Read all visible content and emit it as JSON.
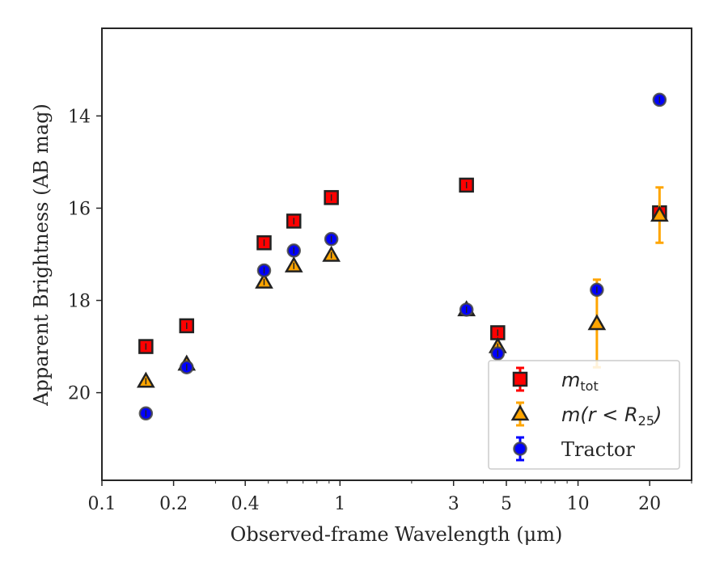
{
  "chart_data": {
    "type": "scatter",
    "title": "",
    "xlabel": "Observed-frame Wavelength (μm)",
    "ylabel": "Apparent Brightness (AB mag)",
    "x_scale": "log",
    "xlim": [
      0.1,
      30
    ],
    "ylim": [
      21.9,
      12.1
    ],
    "y_inverted": true,
    "grid": false,
    "legend_position": "bottom-right",
    "x_ticks": [
      {
        "value": 0.1,
        "label": "0.1"
      },
      {
        "value": 0.2,
        "label": "0.2"
      },
      {
        "value": 0.4,
        "label": "0.4"
      },
      {
        "value": 1,
        "label": "1"
      },
      {
        "value": 3,
        "label": "3"
      },
      {
        "value": 5,
        "label": "5"
      },
      {
        "value": 10,
        "label": "10"
      },
      {
        "value": 20,
        "label": "20"
      }
    ],
    "y_ticks": [
      {
        "value": 14,
        "label": "14"
      },
      {
        "value": 16,
        "label": "16"
      },
      {
        "value": 18,
        "label": "18"
      },
      {
        "value": 20,
        "label": "20"
      }
    ],
    "series": [
      {
        "name": "m_tot",
        "legend_main": "m",
        "legend_sub": "tot",
        "marker": "square",
        "color": "#ff0000",
        "errcolor": "#ff0000",
        "points": [
          {
            "x": 0.153,
            "y": 19.0,
            "err": 0.05
          },
          {
            "x": 0.227,
            "y": 18.55,
            "err": 0.05
          },
          {
            "x": 0.48,
            "y": 16.75,
            "err": 0.05
          },
          {
            "x": 0.64,
            "y": 16.28,
            "err": 0.05
          },
          {
            "x": 0.92,
            "y": 15.77,
            "err": 0.05
          },
          {
            "x": 3.4,
            "y": 15.5,
            "err": 0.05
          },
          {
            "x": 4.6,
            "y": 18.7,
            "err": 0.05
          },
          {
            "x": 22.0,
            "y": 16.1,
            "err": 0.05
          }
        ]
      },
      {
        "name": "m(r < R25)",
        "legend_main": "m(r < R",
        "legend_sub": "25",
        "legend_tail": ")",
        "marker": "triangle",
        "color": "#ffa500",
        "errcolor": "#ffa500",
        "points": [
          {
            "x": 0.153,
            "y": 19.75,
            "err": 0.05
          },
          {
            "x": 0.227,
            "y": 19.38,
            "err": 0.05
          },
          {
            "x": 0.48,
            "y": 17.6,
            "err": 0.05
          },
          {
            "x": 0.64,
            "y": 17.25,
            "err": 0.05
          },
          {
            "x": 0.92,
            "y": 17.02,
            "err": 0.05
          },
          {
            "x": 3.4,
            "y": 18.2,
            "err": 0.05
          },
          {
            "x": 4.6,
            "y": 19.0,
            "err": 0.05
          },
          {
            "x": 12.0,
            "y": 18.5,
            "err": 0.95
          },
          {
            "x": 22.0,
            "y": 16.15,
            "err": 0.6
          }
        ]
      },
      {
        "name": "Tractor",
        "legend_main": "Tractor",
        "marker": "circle",
        "color": "#0000ff",
        "errcolor": "#0000ff",
        "points": [
          {
            "x": 0.153,
            "y": 20.45,
            "err": 0.05
          },
          {
            "x": 0.227,
            "y": 19.45,
            "err": 0.05
          },
          {
            "x": 0.48,
            "y": 17.35,
            "err": 0.05
          },
          {
            "x": 0.64,
            "y": 16.92,
            "err": 0.05
          },
          {
            "x": 0.92,
            "y": 16.67,
            "err": 0.05
          },
          {
            "x": 3.4,
            "y": 18.2,
            "err": 0.05
          },
          {
            "x": 4.6,
            "y": 19.15,
            "err": 0.05
          },
          {
            "x": 12.0,
            "y": 17.77,
            "err": 0.05
          },
          {
            "x": 22.0,
            "y": 13.65,
            "err": 0.05
          }
        ]
      }
    ]
  }
}
